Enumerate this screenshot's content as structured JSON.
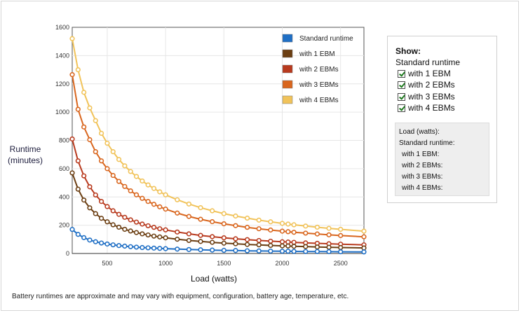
{
  "chart_data": {
    "type": "line",
    "title": "",
    "xlabel": "Load (watts)",
    "ylabel": "Runtime (minutes)",
    "xlim": [
      200,
      2700
    ],
    "ylim": [
      0,
      1600
    ],
    "x_ticks": [
      500,
      1000,
      1500,
      2000,
      2500
    ],
    "y_ticks": [
      0,
      200,
      400,
      600,
      800,
      1000,
      1200,
      1400,
      1600
    ],
    "grid": true,
    "legend_position": "top-right",
    "x": [
      200,
      250,
      300,
      350,
      400,
      450,
      500,
      550,
      600,
      650,
      700,
      750,
      800,
      850,
      900,
      950,
      1000,
      1100,
      1200,
      1300,
      1400,
      1500,
      1600,
      1700,
      1800,
      1900,
      2000,
      2050,
      2100,
      2200,
      2300,
      2400,
      2500,
      2700
    ],
    "series": [
      {
        "name": "Standard runtime",
        "color": "#1f6fc5",
        "values": [
          170,
          135,
          112,
          95,
          83,
          74,
          67,
          61,
          56,
          52,
          48,
          45,
          42,
          40,
          38,
          36,
          34,
          31,
          28,
          26,
          24,
          22,
          21,
          19,
          18,
          17,
          16,
          16,
          15,
          14,
          14,
          13,
          12,
          11
        ]
      },
      {
        "name": "with 1 EBM",
        "color": "#6b3e12",
        "values": [
          570,
          455,
          378,
          323,
          282,
          249,
          224,
          203,
          186,
          171,
          159,
          148,
          139,
          131,
          123,
          117,
          111,
          101,
          92,
          85,
          79,
          73,
          69,
          64,
          61,
          57,
          54,
          53,
          51,
          49,
          46,
          44,
          42,
          39
        ]
      },
      {
        "name": "with 2 EBMs",
        "color": "#b83a1e",
        "values": [
          810,
          655,
          549,
          472,
          414,
          368,
          332,
          302,
          277,
          256,
          238,
          222,
          208,
          196,
          185,
          175,
          167,
          152,
          139,
          128,
          119,
          111,
          104,
          98,
          92,
          87,
          83,
          81,
          79,
          75,
          72,
          69,
          66,
          61
        ]
      },
      {
        "name": "with 3 EBMs",
        "color": "#d9661e",
        "values": [
          1265,
          1020,
          895,
          805,
          720,
          655,
          600,
          552,
          510,
          474,
          443,
          415,
          390,
          368,
          348,
          330,
          314,
          286,
          262,
          242,
          225,
          210,
          197,
          185,
          175,
          166,
          158,
          154,
          150,
          144,
          138,
          132,
          127,
          118
        ]
      },
      {
        "name": "with 4 EBMs",
        "color": "#f1c35a",
        "values": [
          1520,
          1300,
          1140,
          1030,
          940,
          850,
          780,
          720,
          665,
          620,
          580,
          545,
          513,
          485,
          460,
          436,
          415,
          380,
          350,
          324,
          302,
          282,
          265,
          250,
          236,
          224,
          213,
          208,
          203,
          194,
          186,
          178,
          171,
          158
        ]
      }
    ]
  },
  "footnote": "Battery runtimes are approximate and may vary with equipment, configuration, battery age, temperature, etc.",
  "panel": {
    "title": "Show:",
    "standard_label": "Standard runtime",
    "options": [
      "with 1 EBM",
      "with 2 EBMs",
      "with 3 EBMs",
      "with 4 EBMs"
    ],
    "readout": {
      "load": "Load (watts):",
      "standard": "Standard runtime:",
      "ebm1": "with 1 EBM:",
      "ebm2": "with 2 EBMs:",
      "ebm3": "with 3 EBMs:",
      "ebm4": "with 4 EBMs:"
    }
  },
  "colors": {
    "grid": "#e6e6e6",
    "axis": "#333333",
    "plot_border": "#555555"
  }
}
